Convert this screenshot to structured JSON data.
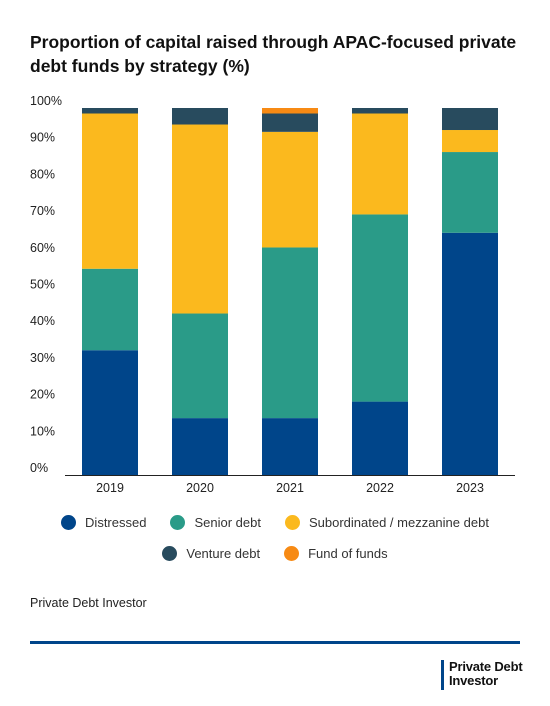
{
  "title": "Proportion of capital raised through APAC-focused private debt funds by strategy (%)",
  "source": "Private Debt Investor",
  "logo": {
    "line1": "Private Debt",
    "line2": "Investor"
  },
  "colors": {
    "Distressed": "#00458a",
    "Senior debt": "#2a9b88",
    "Subordinated / mezzanine debt": "#fbb91e",
    "Venture debt": "#284b5e",
    "Fund of funds": "#f78a14",
    "rule": "#00458a"
  },
  "chart_data": {
    "type": "bar",
    "stacked": true,
    "title": "Proportion of capital raised through APAC-focused private debt funds by strategy (%)",
    "xlabel": "",
    "ylabel": "",
    "categories": [
      "2019",
      "2020",
      "2021",
      "2022",
      "2023"
    ],
    "ylim": [
      0,
      100
    ],
    "yticks": [
      0,
      10,
      20,
      30,
      40,
      50,
      60,
      70,
      80,
      90,
      100
    ],
    "ytick_labels": [
      "0%",
      "10%",
      "20%",
      "30%",
      "40%",
      "50%",
      "60%",
      "70%",
      "80%",
      "90%",
      "100%"
    ],
    "grid": false,
    "legend_position": "bottom",
    "series": [
      {
        "name": "Distressed",
        "values": [
          34,
          15.5,
          15.5,
          20,
          66
        ]
      },
      {
        "name": "Senior debt",
        "values": [
          22.2,
          28.5,
          46.5,
          51,
          22
        ]
      },
      {
        "name": "Subordinated / mezzanine debt",
        "values": [
          42.3,
          51.5,
          31.5,
          27.5,
          6
        ]
      },
      {
        "name": "Venture debt",
        "values": [
          1.5,
          4.5,
          5,
          1.5,
          6
        ]
      },
      {
        "name": "Fund of funds",
        "values": [
          0,
          0,
          1.5,
          0,
          0
        ]
      }
    ]
  }
}
